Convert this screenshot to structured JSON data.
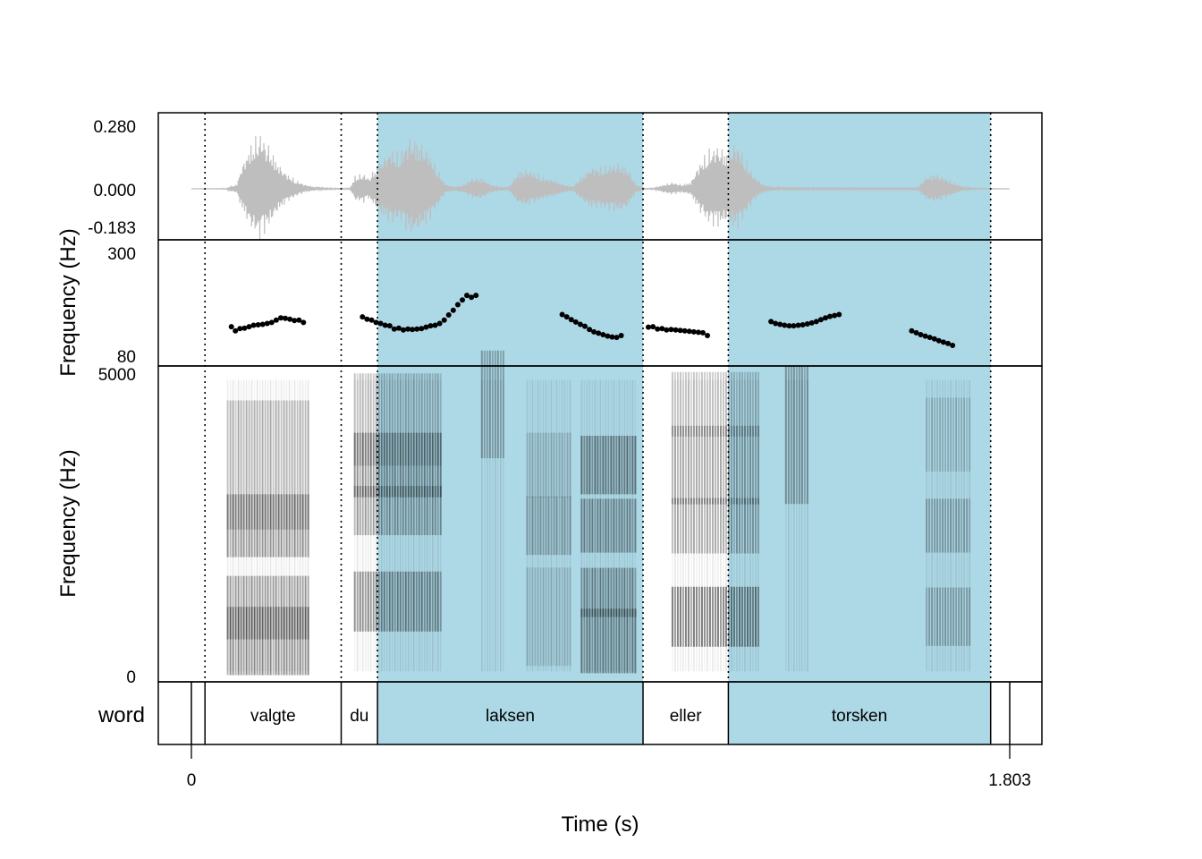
{
  "chart_data": {
    "type": "line",
    "xlabel": "Time (s)",
    "x_ticks": [
      "0",
      "1.803"
    ],
    "x_range": [
      0,
      1.803
    ],
    "waveform": {
      "ylim": [
        -0.183,
        0.28
      ],
      "y_ticks": [
        "0.280",
        "0.000",
        "-0.183"
      ],
      "color": "#bebebe",
      "envelope": [
        [
          0.0,
          0.0
        ],
        [
          0.08,
          0.002
        ],
        [
          0.07,
          0.006
        ],
        [
          0.1,
          0.02
        ],
        [
          0.11,
          0.1
        ],
        [
          0.13,
          0.2
        ],
        [
          0.15,
          0.26
        ],
        [
          0.17,
          0.2
        ],
        [
          0.19,
          0.12
        ],
        [
          0.21,
          0.07
        ],
        [
          0.23,
          0.04
        ],
        [
          0.25,
          0.02
        ],
        [
          0.27,
          0.01
        ],
        [
          0.29,
          0.004
        ],
        [
          0.33,
          0.002
        ],
        [
          0.35,
          0.003
        ],
        [
          0.36,
          0.06
        ],
        [
          0.38,
          0.07
        ],
        [
          0.39,
          0.05
        ],
        [
          0.4,
          0.08
        ],
        [
          0.42,
          0.14
        ],
        [
          0.44,
          0.18
        ],
        [
          0.46,
          0.16
        ],
        [
          0.48,
          0.24
        ],
        [
          0.5,
          0.22
        ],
        [
          0.52,
          0.18
        ],
        [
          0.54,
          0.1
        ],
        [
          0.56,
          0.02
        ],
        [
          0.58,
          0.01
        ],
        [
          0.6,
          0.02
        ],
        [
          0.62,
          0.05
        ],
        [
          0.64,
          0.05
        ],
        [
          0.66,
          0.02
        ],
        [
          0.68,
          0.01
        ],
        [
          0.7,
          0.01
        ],
        [
          0.72,
          0.08
        ],
        [
          0.74,
          0.09
        ],
        [
          0.76,
          0.07
        ],
        [
          0.78,
          0.05
        ],
        [
          0.8,
          0.04
        ],
        [
          0.82,
          0.02
        ],
        [
          0.84,
          0.01
        ],
        [
          0.86,
          0.06
        ],
        [
          0.88,
          0.1
        ],
        [
          0.9,
          0.1
        ],
        [
          0.92,
          0.11
        ],
        [
          0.94,
          0.12
        ],
        [
          0.96,
          0.1
        ],
        [
          0.98,
          0.02
        ],
        [
          1.0,
          0.002
        ],
        [
          1.02,
          0.003
        ],
        [
          1.04,
          0.02
        ],
        [
          1.06,
          0.03
        ],
        [
          1.08,
          0.02
        ],
        [
          1.1,
          0.03
        ],
        [
          1.12,
          0.12
        ],
        [
          1.14,
          0.18
        ],
        [
          1.16,
          0.2
        ],
        [
          1.18,
          0.17
        ],
        [
          1.2,
          0.22
        ],
        [
          1.22,
          0.14
        ],
        [
          1.24,
          0.06
        ],
        [
          1.26,
          0.02
        ],
        [
          1.28,
          0.01
        ],
        [
          1.3,
          0.005
        ],
        [
          1.4,
          0.004
        ],
        [
          1.5,
          0.004
        ],
        [
          1.6,
          0.004
        ],
        [
          1.62,
          0.06
        ],
        [
          1.64,
          0.07
        ],
        [
          1.66,
          0.05
        ],
        [
          1.68,
          0.03
        ],
        [
          1.7,
          0.01
        ],
        [
          1.72,
          0.003
        ],
        [
          1.75,
          0.002
        ],
        [
          1.803,
          0.0
        ]
      ]
    },
    "pitch": {
      "ylabel": "Frequency (Hz)",
      "ylim": [
        80,
        300
      ],
      "y_ticks": [
        "300",
        "80"
      ],
      "points": [
        [
          0.088,
          141
        ],
        [
          0.097,
          132
        ],
        [
          0.107,
          137
        ],
        [
          0.117,
          138
        ],
        [
          0.127,
          141
        ],
        [
          0.137,
          144
        ],
        [
          0.147,
          145
        ],
        [
          0.157,
          146
        ],
        [
          0.167,
          148
        ],
        [
          0.177,
          150
        ],
        [
          0.187,
          155
        ],
        [
          0.197,
          160
        ],
        [
          0.207,
          159
        ],
        [
          0.217,
          157
        ],
        [
          0.227,
          154
        ],
        [
          0.237,
          155
        ],
        [
          0.247,
          150
        ],
        [
          0.377,
          162
        ],
        [
          0.387,
          157
        ],
        [
          0.397,
          155
        ],
        [
          0.407,
          150
        ],
        [
          0.417,
          148
        ],
        [
          0.427,
          144
        ],
        [
          0.437,
          143
        ],
        [
          0.447,
          136
        ],
        [
          0.457,
          138
        ],
        [
          0.467,
          134
        ],
        [
          0.477,
          136
        ],
        [
          0.487,
          135
        ],
        [
          0.497,
          136
        ],
        [
          0.507,
          137
        ],
        [
          0.517,
          140
        ],
        [
          0.527,
          143
        ],
        [
          0.537,
          144
        ],
        [
          0.547,
          148
        ],
        [
          0.557,
          155
        ],
        [
          0.567,
          166
        ],
        [
          0.577,
          176
        ],
        [
          0.587,
          188
        ],
        [
          0.597,
          198
        ],
        [
          0.607,
          208
        ],
        [
          0.617,
          204
        ],
        [
          0.627,
          208
        ],
        [
          0.817,
          167
        ],
        [
          0.827,
          162
        ],
        [
          0.837,
          156
        ],
        [
          0.847,
          151
        ],
        [
          0.857,
          146
        ],
        [
          0.867,
          142
        ],
        [
          0.877,
          135
        ],
        [
          0.887,
          130
        ],
        [
          0.897,
          127
        ],
        [
          0.907,
          124
        ],
        [
          0.917,
          121
        ],
        [
          0.927,
          119
        ],
        [
          0.937,
          118
        ],
        [
          0.947,
          122
        ],
        [
          1.007,
          140
        ],
        [
          1.017,
          141
        ],
        [
          1.027,
          136
        ],
        [
          1.037,
          137
        ],
        [
          1.047,
          134
        ],
        [
          1.057,
          135
        ],
        [
          1.067,
          134
        ],
        [
          1.077,
          133
        ],
        [
          1.087,
          132
        ],
        [
          1.097,
          131
        ],
        [
          1.107,
          130
        ],
        [
          1.117,
          129
        ],
        [
          1.127,
          128
        ],
        [
          1.137,
          122
        ],
        [
          1.277,
          152
        ],
        [
          1.287,
          148
        ],
        [
          1.297,
          146
        ],
        [
          1.307,
          144
        ],
        [
          1.317,
          143
        ],
        [
          1.327,
          143
        ],
        [
          1.337,
          144
        ],
        [
          1.347,
          145
        ],
        [
          1.357,
          147
        ],
        [
          1.367,
          149
        ],
        [
          1.377,
          152
        ],
        [
          1.387,
          156
        ],
        [
          1.397,
          160
        ],
        [
          1.407,
          163
        ],
        [
          1.417,
          165
        ],
        [
          1.427,
          167
        ],
        [
          1.587,
          132
        ],
        [
          1.597,
          128
        ],
        [
          1.607,
          124
        ],
        [
          1.617,
          121
        ],
        [
          1.627,
          118
        ],
        [
          1.637,
          115
        ],
        [
          1.647,
          111
        ],
        [
          1.657,
          108
        ],
        [
          1.667,
          105
        ],
        [
          1.677,
          101
        ]
      ]
    },
    "spectrogram": {
      "ylabel": "Frequency (Hz)",
      "ylim": [
        0,
        5000
      ],
      "y_ticks": [
        "5000",
        "0"
      ],
      "segments": [
        {
          "t0": 0.08,
          "t1": 0.26,
          "bands": [
            [
              0.12,
              0.14,
              0.18,
              0.8
            ],
            [
              0.23,
              0.32,
              0.11,
              0.7
            ],
            [
              0.5,
              0.18,
              0.15,
              0.75
            ],
            [
              0.7,
              0.5,
              0.27,
              0.5
            ]
          ]
        },
        {
          "t0": 0.36,
          "t1": 0.55,
          "bands": [
            [
              0.25,
              0.25,
              0.12,
              0.8
            ],
            [
              0.55,
              0.2,
              0.1,
              0.65
            ],
            [
              0.7,
              0.3,
              0.12,
              0.75
            ],
            [
              0.85,
              0.5,
              0.15,
              0.45
            ]
          ]
        },
        {
          "t0": 0.64,
          "t1": 0.69,
          "bands": [
            [
              0.9,
              0.5,
              0.2,
              0.55
            ]
          ]
        },
        {
          "t0": 0.74,
          "t1": 0.84,
          "bands": [
            [
              0.2,
              0.4,
              0.2,
              0.3
            ],
            [
              0.5,
              0.3,
              0.1,
              0.55
            ],
            [
              0.7,
              0.3,
              0.12,
              0.35
            ]
          ]
        },
        {
          "t0": 0.86,
          "t1": 0.98,
          "bands": [
            [
              0.12,
              0.3,
              0.12,
              0.8
            ],
            [
              0.28,
              0.2,
              0.1,
              0.75
            ],
            [
              0.5,
              0.25,
              0.1,
              0.75
            ],
            [
              0.7,
              0.3,
              0.1,
              0.85
            ]
          ]
        },
        {
          "t0": 1.06,
          "t1": 1.25,
          "bands": [
            [
              0.2,
              0.25,
              0.12,
              0.9
            ],
            [
              0.5,
              0.2,
              0.12,
              0.55
            ],
            [
              0.7,
              0.35,
              0.15,
              0.55
            ],
            [
              0.9,
              0.2,
              0.15,
              0.4
            ]
          ]
        },
        {
          "t0": 1.31,
          "t1": 1.36,
          "bands": [
            [
              0.8,
              0.5,
              0.3,
              0.6
            ]
          ]
        },
        {
          "t0": 1.62,
          "t1": 1.72,
          "bands": [
            [
              0.2,
              0.3,
              0.1,
              0.5
            ],
            [
              0.5,
              0.25,
              0.1,
              0.5
            ],
            [
              0.8,
              0.3,
              0.15,
              0.3
            ]
          ]
        }
      ]
    },
    "tier": {
      "name": "word",
      "highlight_color": "#add8e6",
      "boundaries": [
        0.03
      ],
      "intervals": [
        {
          "label": "valgte",
          "start": 0.03,
          "end": 0.33,
          "highlight": false
        },
        {
          "label": "du",
          "start": 0.33,
          "end": 0.41,
          "highlight": false
        },
        {
          "label": "laksen",
          "start": 0.41,
          "end": 0.995,
          "highlight": true
        },
        {
          "label": "eller",
          "start": 0.995,
          "end": 1.183,
          "highlight": false
        },
        {
          "label": "torsken",
          "start": 1.183,
          "end": 1.761,
          "highlight": true
        }
      ]
    }
  }
}
